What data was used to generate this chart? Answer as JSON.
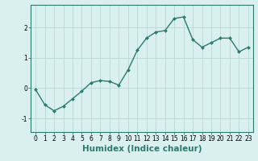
{
  "x": [
    0,
    1,
    2,
    3,
    4,
    5,
    6,
    7,
    8,
    9,
    10,
    11,
    12,
    13,
    14,
    15,
    16,
    17,
    18,
    19,
    20,
    21,
    22,
    23
  ],
  "y": [
    -0.05,
    -0.55,
    -0.75,
    -0.6,
    -0.35,
    -0.1,
    0.18,
    0.25,
    0.22,
    0.1,
    0.6,
    1.25,
    1.65,
    1.85,
    1.9,
    2.3,
    2.35,
    1.6,
    1.35,
    1.5,
    1.65,
    1.65,
    1.2,
    1.35
  ],
  "line_color": "#2d7a6e",
  "marker": "D",
  "marker_size": 2,
  "background_color": "#d9f0ee",
  "grid_color": "#b8d8d4",
  "xlabel": "Humidex (Indice chaleur)",
  "xlim": [
    -0.5,
    23.5
  ],
  "ylim": [
    -1.45,
    2.75
  ],
  "yticks": [
    -1,
    0,
    1,
    2
  ],
  "xticks": [
    0,
    1,
    2,
    3,
    4,
    5,
    6,
    7,
    8,
    9,
    10,
    11,
    12,
    13,
    14,
    15,
    16,
    17,
    18,
    19,
    20,
    21,
    22,
    23
  ],
  "tick_fontsize": 5.5,
  "xlabel_fontsize": 7.5,
  "line_width": 1.0,
  "ax_edge_color": "#2d7a6e"
}
